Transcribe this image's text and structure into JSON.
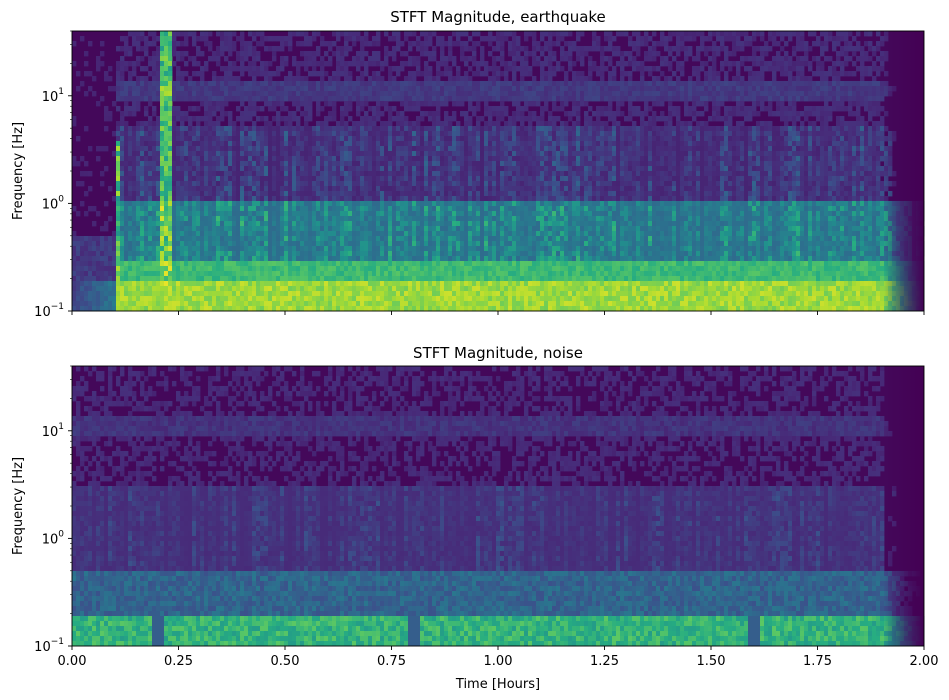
{
  "chart_data": [
    {
      "type": "heatmap",
      "title": "STFT Magnitude, earthquake",
      "xlabel": "",
      "ylabel": "Frequency [Hz]",
      "x_scale": "linear",
      "y_scale": "log",
      "xlim": [
        0,
        2
      ],
      "ylim": [
        0.1,
        40
      ],
      "x_ticks": [
        0,
        0.25,
        0.5,
        0.75,
        1.0,
        1.25,
        1.5,
        1.75,
        2.0
      ],
      "x_tick_labels_shown": false,
      "y_ticks": [
        {
          "value": 0.1,
          "label": "10",
          "exp": "−1"
        },
        {
          "value": 1,
          "label": "10",
          "exp": "0"
        },
        {
          "value": 10,
          "label": "10",
          "exp": "1"
        }
      ],
      "colormap": "viridis",
      "features": {
        "quiet_onset_hours": 0.1,
        "strong_bursts_hours": [
          0.1,
          0.22
        ],
        "burst_max_freq_hz": [
          4,
          40
        ],
        "strong_band_hz": [
          0.1,
          0.3
        ],
        "fade_start_hours": 1.9,
        "level_label": "strong"
      }
    },
    {
      "type": "heatmap",
      "title": "STFT Magnitude, noise",
      "xlabel": "Time [Hours]",
      "ylabel": "Frequency [Hz]",
      "x_scale": "linear",
      "y_scale": "log",
      "xlim": [
        0,
        2
      ],
      "ylim": [
        0.1,
        40
      ],
      "x_ticks": [
        0,
        0.25,
        0.5,
        0.75,
        1.0,
        1.25,
        1.5,
        1.75,
        2.0
      ],
      "x_tick_labels": [
        "0.00",
        "0.25",
        "0.50",
        "0.75",
        "1.00",
        "1.25",
        "1.50",
        "1.75",
        "2.00"
      ],
      "x_tick_labels_shown": true,
      "y_ticks": [
        {
          "value": 0.1,
          "label": "10",
          "exp": "−1"
        },
        {
          "value": 1,
          "label": "10",
          "exp": "0"
        },
        {
          "value": 10,
          "label": "10",
          "exp": "1"
        }
      ],
      "colormap": "viridis",
      "features": {
        "dips_hours": [
          0.2,
          0.8,
          1.6
        ],
        "strong_band_hz": [
          0.1,
          0.2
        ],
        "fade_start_hours": 1.9,
        "level_label": "moderate"
      }
    }
  ]
}
